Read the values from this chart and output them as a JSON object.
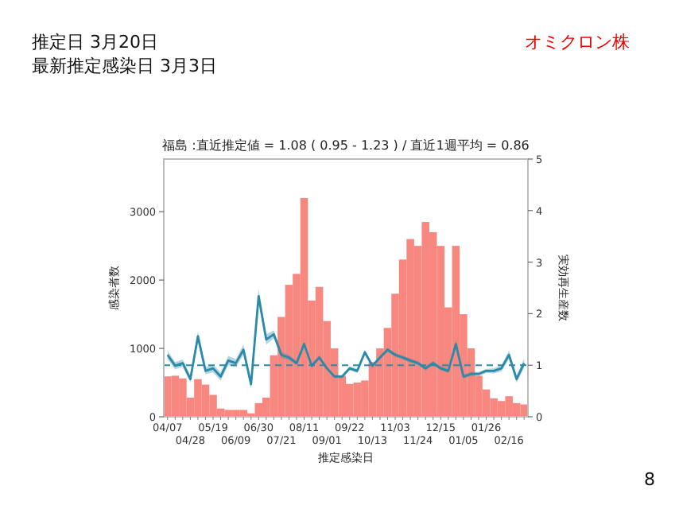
{
  "chart_data": {
    "type": "bar",
    "title": "福島 :直近推定値 = 1.08 ( 0.95 - 1.23 ) / 直近1週平均 = 0.86",
    "xlabel": "推定感染日",
    "ylabel": "感染者数",
    "y2label": "実効再生産数",
    "annotations": [
      "推定日 3月20日",
      "最新推定感染日 3月3日",
      "オミクロン株",
      "8"
    ],
    "categories": [
      "04/07",
      null,
      null,
      "04/28",
      null,
      null,
      "05/19",
      null,
      null,
      "06/09",
      null,
      null,
      "06/30",
      null,
      null,
      "07/21",
      null,
      null,
      "08/11",
      null,
      null,
      "09/01",
      null,
      null,
      "09/22",
      null,
      null,
      "10/13",
      null,
      null,
      "11/03",
      null,
      null,
      "11/24",
      null,
      null,
      "12/15",
      null,
      null,
      "01/05",
      null,
      null,
      "01/26",
      null,
      null,
      "02/16",
      null,
      null
    ],
    "series": [
      {
        "color": "#f8877f",
        "values": [
          590,
          600,
          560,
          280,
          550,
          470,
          320,
          120,
          100,
          100,
          100,
          50,
          200,
          280,
          900,
          1460,
          1930,
          2090,
          3200,
          1700,
          1900,
          1400,
          1000,
          600,
          480,
          500,
          530,
          800,
          1000,
          1300,
          1800,
          2300,
          2600,
          2500,
          2850,
          2700,
          2500,
          1600,
          2500,
          1500,
          1000,
          600,
          400,
          270,
          230,
          300,
          200,
          180
        ]
      },
      {
        "type": "line",
        "axis": "y2",
        "color": "#2a8aa8",
        "values": [
          1.2,
          0.99,
          1.04,
          0.73,
          1.56,
          0.89,
          0.94,
          0.78,
          1.09,
          1.04,
          1.3,
          0.63,
          2.34,
          1.5,
          1.6,
          1.2,
          1.15,
          1.04,
          1.41,
          0.99,
          1.15,
          0.94,
          0.78,
          0.78,
          0.94,
          0.89,
          1.25,
          0.99,
          1.15,
          1.3,
          1.2,
          1.15,
          1.09,
          1.04,
          0.94,
          1.04,
          0.94,
          0.89,
          1.41,
          0.78,
          0.83,
          0.83,
          0.89,
          0.89,
          0.94,
          1.2,
          0.73,
          1.04
        ],
        "lower": [
          1.12,
          0.92,
          0.97,
          0.66,
          1.46,
          0.82,
          0.86,
          0.7,
          1.0,
          0.96,
          1.2,
          0.55,
          2.2,
          1.4,
          1.52,
          1.14,
          1.1,
          1.0,
          1.36,
          0.95,
          1.11,
          0.91,
          0.75,
          0.75,
          0.9,
          0.85,
          1.2,
          0.95,
          1.11,
          1.26,
          1.16,
          1.11,
          1.05,
          1.0,
          0.9,
          1.0,
          0.9,
          0.85,
          1.34,
          0.74,
          0.79,
          0.79,
          0.85,
          0.84,
          0.88,
          1.12,
          0.66,
          0.95
        ],
        "upper": [
          1.28,
          1.06,
          1.11,
          0.8,
          1.66,
          0.96,
          1.02,
          0.86,
          1.18,
          1.12,
          1.4,
          0.71,
          2.48,
          1.6,
          1.68,
          1.26,
          1.2,
          1.08,
          1.46,
          1.03,
          1.19,
          0.97,
          0.81,
          0.81,
          0.98,
          0.93,
          1.3,
          1.03,
          1.19,
          1.34,
          1.24,
          1.19,
          1.13,
          1.08,
          0.98,
          1.08,
          0.98,
          0.93,
          1.48,
          0.82,
          0.87,
          0.87,
          0.93,
          0.94,
          1.0,
          1.28,
          0.8,
          1.13
        ]
      }
    ],
    "ylim": [
      0,
      3770
    ],
    "yticks": [
      0,
      1000,
      2000,
      3000
    ],
    "y2lim": [
      0,
      5
    ],
    "y2ticks": [
      0,
      1,
      2,
      3,
      4,
      5
    ],
    "ref_lines": [
      {
        "axis": "y2",
        "value": 1,
        "color": "#2a8aa8",
        "line_style": "dashed"
      }
    ],
    "grid": false
  }
}
